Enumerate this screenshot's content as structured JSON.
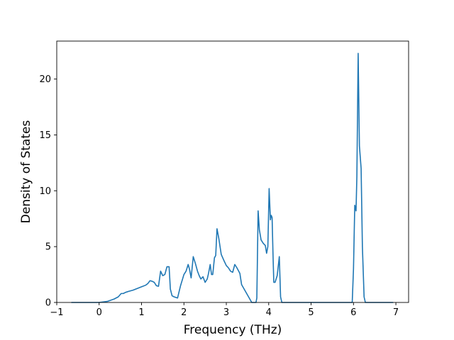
{
  "chart_data": {
    "type": "line",
    "title": "",
    "xlabel": "Frequency (THz)",
    "ylabel": "Density of States",
    "xlim": [
      -1,
      7.3
    ],
    "ylim": [
      0,
      23.4
    ],
    "xticks": [
      -1,
      0,
      1,
      2,
      3,
      4,
      5,
      6,
      7
    ],
    "yticks": [
      0,
      5,
      10,
      15,
      20
    ],
    "grid": false,
    "line_color": "#1f77b4",
    "series": [
      {
        "x": [
          -0.65,
          0.0,
          0.2,
          0.35,
          0.45,
          0.52,
          0.57,
          0.62,
          0.7,
          0.8,
          0.9,
          1.0,
          1.1,
          1.15,
          1.2,
          1.25,
          1.3,
          1.35,
          1.4,
          1.45,
          1.5,
          1.55,
          1.6,
          1.62,
          1.65,
          1.68,
          1.72,
          1.77,
          1.85,
          1.92,
          2.0,
          2.05,
          2.1,
          2.13,
          2.17,
          2.22,
          2.27,
          2.32,
          2.36,
          2.4,
          2.45,
          2.5,
          2.55,
          2.58,
          2.62,
          2.65,
          2.68,
          2.72,
          2.75,
          2.78,
          2.82,
          2.88,
          2.95,
          3.0,
          3.05,
          3.1,
          3.15,
          3.2,
          3.25,
          3.32,
          3.36,
          3.6,
          3.7,
          3.72,
          3.75,
          3.78,
          3.82,
          3.87,
          3.92,
          3.95,
          3.98,
          4.01,
          4.04,
          4.06,
          4.08,
          4.1,
          4.12,
          4.15,
          4.2,
          4.25,
          4.28,
          4.31,
          4.35,
          4.4,
          5.97,
          6.0,
          6.03,
          6.06,
          6.08,
          6.11,
          6.14,
          6.18,
          6.21,
          6.25,
          6.28,
          6.32,
          6.5,
          6.93
        ],
        "y": [
          0.0,
          0.0,
          0.1,
          0.3,
          0.5,
          0.8,
          0.8,
          0.9,
          1.0,
          1.1,
          1.25,
          1.4,
          1.55,
          1.7,
          1.95,
          1.9,
          1.8,
          1.5,
          1.45,
          2.8,
          2.4,
          2.5,
          3.2,
          3.2,
          3.2,
          1.2,
          0.6,
          0.5,
          0.4,
          1.5,
          2.5,
          2.8,
          3.4,
          3.0,
          2.2,
          4.1,
          3.5,
          2.8,
          2.4,
          2.1,
          2.3,
          1.8,
          2.1,
          2.6,
          3.4,
          2.5,
          2.5,
          4.0,
          4.2,
          6.6,
          5.8,
          4.3,
          3.7,
          3.3,
          3.1,
          2.8,
          2.7,
          3.4,
          3.1,
          2.6,
          1.6,
          0.0,
          0.0,
          0.4,
          8.2,
          6.5,
          5.6,
          5.3,
          5.1,
          4.4,
          5.0,
          10.2,
          7.4,
          7.8,
          7.6,
          4.5,
          1.8,
          1.8,
          2.4,
          4.1,
          0.5,
          0.0,
          0.0,
          0.0,
          0.0,
          3.0,
          8.7,
          8.2,
          11.3,
          22.3,
          14.0,
          12.0,
          5.0,
          0.5,
          0.0,
          0.0,
          0.0,
          0.0
        ]
      }
    ]
  }
}
